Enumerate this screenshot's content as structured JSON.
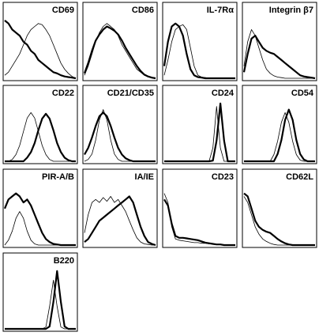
{
  "chart_data": [
    {
      "type": "line",
      "title": "CD69",
      "ylim": [
        0,
        100
      ],
      "series": [
        {
          "color": "#000000",
          "width": 0.8,
          "values": [
            5,
            10,
            20,
            30,
            40,
            55,
            70,
            80,
            85,
            90,
            88,
            80,
            70,
            55,
            40,
            25,
            15,
            8,
            3,
            0
          ]
        },
        {
          "color": "#000000",
          "width": 2.2,
          "values": [
            95,
            90,
            80,
            75,
            70,
            60,
            55,
            45,
            40,
            30,
            25,
            20,
            15,
            10,
            8,
            5,
            3,
            2,
            1,
            0
          ]
        }
      ]
    },
    {
      "type": "line",
      "title": "CD86",
      "ylim": [
        0,
        100
      ],
      "series": [
        {
          "color": "#000000",
          "width": 0.8,
          "values": [
            5,
            20,
            40,
            60,
            75,
            85,
            90,
            85,
            80,
            70,
            55,
            45,
            35,
            25,
            15,
            10,
            5,
            3,
            1,
            0
          ]
        },
        {
          "color": "#000000",
          "width": 2.2,
          "values": [
            8,
            25,
            45,
            62,
            72,
            80,
            85,
            82,
            78,
            72,
            62,
            50,
            40,
            30,
            20,
            12,
            6,
            3,
            1,
            0
          ]
        }
      ]
    },
    {
      "type": "line",
      "title": "IL-7Rα",
      "ylim": [
        0,
        100
      ],
      "series": [
        {
          "color": "#000000",
          "width": 0.8,
          "values": [
            5,
            30,
            60,
            80,
            85,
            88,
            80,
            50,
            20,
            5,
            2,
            1,
            0,
            0,
            0,
            0,
            0,
            0,
            0,
            0
          ]
        },
        {
          "color": "#000000",
          "width": 2.2,
          "values": [
            20,
            60,
            85,
            90,
            85,
            70,
            40,
            15,
            5,
            2,
            1,
            0,
            0,
            0,
            0,
            0,
            0,
            0,
            0,
            0
          ]
        }
      ]
    },
    {
      "type": "line",
      "title": "Integrin β7",
      "ylim": [
        0,
        100
      ],
      "series": [
        {
          "color": "#000000",
          "width": 0.8,
          "values": [
            20,
            60,
            80,
            70,
            50,
            30,
            15,
            8,
            4,
            2,
            1,
            0,
            0,
            0,
            0,
            0,
            0,
            0,
            0,
            0
          ]
        },
        {
          "color": "#000000",
          "width": 2.2,
          "values": [
            10,
            40,
            65,
            70,
            60,
            50,
            45,
            42,
            40,
            35,
            30,
            25,
            20,
            15,
            10,
            5,
            3,
            2,
            1,
            0
          ]
        }
      ]
    },
    {
      "type": "line",
      "title": "CD22",
      "ylim": [
        0,
        100
      ],
      "series": [
        {
          "color": "#000000",
          "width": 0.8,
          "values": [
            0,
            0,
            3,
            11,
            26,
            49,
            71,
            80,
            71,
            49,
            26,
            11,
            3,
            0,
            0,
            0,
            0,
            0,
            0,
            0
          ]
        },
        {
          "color": "#000000",
          "width": 2.2,
          "values": [
            0,
            0,
            0,
            0,
            0,
            0,
            6,
            15,
            30,
            51,
            70,
            78,
            70,
            51,
            30,
            15,
            6,
            2,
            0,
            0
          ]
        }
      ]
    },
    {
      "type": "line",
      "title": "CD21/CD35",
      "ylim": [
        0,
        100
      ],
      "series": [
        {
          "color": "#000000",
          "width": 0.8,
          "values": [
            0,
            3,
            12,
            35,
            68,
            85,
            68,
            35,
            12,
            3,
            0,
            0,
            0,
            0,
            0,
            0,
            0,
            0,
            0,
            0
          ]
        },
        {
          "color": "#000000",
          "width": 2.2,
          "values": [
            11,
            22,
            39,
            58,
            74,
            80,
            74,
            58,
            39,
            22,
            11,
            5,
            2,
            0,
            0,
            0,
            0,
            0,
            0,
            0
          ]
        }
      ]
    },
    {
      "type": "line",
      "title": "CD24",
      "ylim": [
        0,
        100
      ],
      "series": [
        {
          "color": "#000000",
          "width": 0.8,
          "values": [
            0,
            0,
            0,
            0,
            0,
            0,
            0,
            0,
            0,
            0,
            0,
            0,
            0,
            22,
            90,
            22,
            0,
            0,
            0,
            0
          ]
        },
        {
          "color": "#000000",
          "width": 2.2,
          "values": [
            0,
            0,
            0,
            0,
            0,
            0,
            0,
            0,
            0,
            0,
            0,
            0,
            0,
            1,
            34,
            95,
            34,
            0,
            0,
            0
          ]
        }
      ]
    },
    {
      "type": "line",
      "title": "CD54",
      "ylim": [
        0,
        100
      ],
      "series": [
        {
          "color": "#000000",
          "width": 0.8,
          "values": [
            0,
            0,
            0,
            0,
            0,
            0,
            0,
            0,
            11,
            33,
            64,
            80,
            64,
            33,
            11,
            2,
            0,
            0,
            0,
            0
          ]
        },
        {
          "color": "#000000",
          "width": 2.2,
          "values": [
            0,
            0,
            0,
            0,
            0,
            0,
            0,
            0,
            0,
            12,
            35,
            68,
            85,
            68,
            35,
            12,
            3,
            0,
            0,
            0
          ]
        }
      ]
    },
    {
      "type": "line",
      "title": "PIR-A/B",
      "ylim": [
        0,
        100
      ],
      "series": [
        {
          "color": "#000000",
          "width": 0.8,
          "values": [
            0,
            8,
            23,
            44,
            55,
            44,
            23,
            8,
            2,
            0,
            0,
            0,
            0,
            0,
            0,
            0,
            0,
            0,
            0,
            0
          ]
        },
        {
          "color": "#000000",
          "width": 2.2,
          "values": [
            60,
            75,
            80,
            85,
            80,
            70,
            75,
            65,
            50,
            35,
            20,
            10,
            5,
            2,
            1,
            0,
            0,
            0,
            0,
            0
          ]
        }
      ]
    },
    {
      "type": "line",
      "title": "IA/IE",
      "ylim": [
        0,
        100
      ],
      "series": [
        {
          "color": "#000000",
          "width": 0.8,
          "values": [
            20,
            50,
            70,
            75,
            70,
            78,
            72,
            80,
            70,
            75,
            65,
            55,
            40,
            25,
            12,
            5,
            2,
            1,
            0,
            0
          ]
        },
        {
          "color": "#000000",
          "width": 2.2,
          "values": [
            5,
            10,
            20,
            30,
            40,
            45,
            50,
            55,
            60,
            65,
            70,
            75,
            80,
            70,
            50,
            30,
            15,
            5,
            2,
            0
          ]
        }
      ]
    },
    {
      "type": "line",
      "title": "CD23",
      "ylim": [
        0,
        100
      ],
      "series": [
        {
          "color": "#000000",
          "width": 0.8,
          "values": [
            85,
            70,
            30,
            10,
            8,
            7,
            6,
            5,
            4,
            4,
            3,
            3,
            2,
            2,
            1,
            1,
            0,
            0,
            0,
            0
          ]
        },
        {
          "color": "#000000",
          "width": 2.2,
          "values": [
            75,
            65,
            35,
            15,
            12,
            12,
            11,
            10,
            9,
            8,
            6,
            4,
            3,
            2,
            1,
            1,
            0,
            0,
            0,
            0
          ]
        }
      ]
    },
    {
      "type": "line",
      "title": "CD62L",
      "ylim": [
        0,
        100
      ],
      "series": [
        {
          "color": "#000000",
          "width": 0.8,
          "values": [
            80,
            70,
            50,
            30,
            18,
            10,
            6,
            3,
            1,
            0,
            0,
            0,
            0,
            0,
            0,
            0,
            0,
            0,
            0,
            0
          ]
        },
        {
          "color": "#000000",
          "width": 2.2,
          "values": [
            85,
            80,
            60,
            40,
            30,
            25,
            22,
            20,
            15,
            10,
            6,
            3,
            1,
            0,
            0,
            0,
            0,
            0,
            0,
            0
          ]
        }
      ]
    },
    {
      "type": "line",
      "title": "B220",
      "ylim": [
        0,
        100
      ],
      "series": [
        {
          "color": "#000000",
          "width": 0.8,
          "values": [
            0,
            0,
            0,
            0,
            0,
            0,
            0,
            0,
            0,
            0,
            0,
            3,
            37,
            80,
            37,
            3,
            0,
            0,
            0,
            0
          ]
        },
        {
          "color": "#000000",
          "width": 2.2,
          "values": [
            0,
            0,
            0,
            0,
            0,
            0,
            0,
            0,
            0,
            0,
            0,
            0,
            4,
            44,
            95,
            44,
            4,
            0,
            0,
            0
          ]
        }
      ]
    }
  ]
}
